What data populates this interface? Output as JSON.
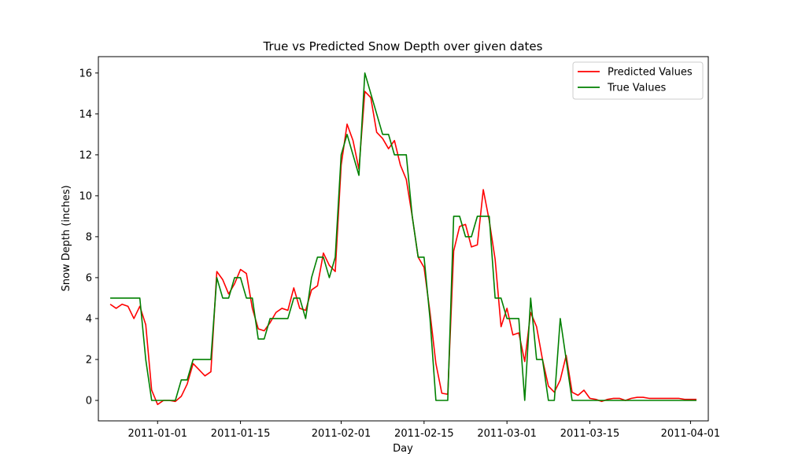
{
  "chart_data": {
    "type": "line",
    "title": "True vs Predicted Snow Depth over given dates",
    "xlabel": "Day",
    "ylabel": "Snow Depth (inches)",
    "x_axis": "date",
    "xlim": [
      "2010-12-22",
      "2011-04-04"
    ],
    "ylim": [
      -1,
      16.8
    ],
    "x_ticks": [
      "2011-01-01",
      "2011-01-15",
      "2011-02-01",
      "2011-02-15",
      "2011-03-01",
      "2011-03-15",
      "2011-04-01"
    ],
    "y_ticks": [
      0,
      2,
      4,
      6,
      8,
      10,
      12,
      14,
      16
    ],
    "legend": {
      "placement": "top-right"
    },
    "grid": false,
    "series": [
      {
        "name": "Predicted Values",
        "color": "#ff0000",
        "points": [
          [
            "2010-12-24",
            4.7
          ],
          [
            "2010-12-25",
            4.5
          ],
          [
            "2010-12-26",
            4.7
          ],
          [
            "2010-12-27",
            4.6
          ],
          [
            "2010-12-28",
            4.0
          ],
          [
            "2010-12-29",
            4.6
          ],
          [
            "2010-12-30",
            3.7
          ],
          [
            "2010-12-31",
            0.5
          ],
          [
            "2011-01-01",
            -0.2
          ],
          [
            "2011-01-02",
            0.0
          ],
          [
            "2011-01-03",
            0.0
          ],
          [
            "2011-01-04",
            -0.05
          ],
          [
            "2011-01-05",
            0.2
          ],
          [
            "2011-01-06",
            0.8
          ],
          [
            "2011-01-07",
            1.8
          ],
          [
            "2011-01-08",
            1.5
          ],
          [
            "2011-01-09",
            1.2
          ],
          [
            "2011-01-10",
            1.4
          ],
          [
            "2011-01-11",
            6.3
          ],
          [
            "2011-01-12",
            5.9
          ],
          [
            "2011-01-13",
            5.2
          ],
          [
            "2011-01-14",
            5.7
          ],
          [
            "2011-01-15",
            6.4
          ],
          [
            "2011-01-16",
            6.2
          ],
          [
            "2011-01-17",
            4.5
          ],
          [
            "2011-01-18",
            3.5
          ],
          [
            "2011-01-19",
            3.4
          ],
          [
            "2011-01-20",
            3.8
          ],
          [
            "2011-01-21",
            4.3
          ],
          [
            "2011-01-22",
            4.5
          ],
          [
            "2011-01-23",
            4.4
          ],
          [
            "2011-01-24",
            5.5
          ],
          [
            "2011-01-25",
            4.5
          ],
          [
            "2011-01-26",
            4.4
          ],
          [
            "2011-01-27",
            5.4
          ],
          [
            "2011-01-28",
            5.6
          ],
          [
            "2011-01-29",
            7.2
          ],
          [
            "2011-01-30",
            6.6
          ],
          [
            "2011-01-31",
            6.3
          ],
          [
            "2011-02-01",
            11.5
          ],
          [
            "2011-02-02",
            13.5
          ],
          [
            "2011-02-03",
            12.7
          ],
          [
            "2011-02-04",
            11.3
          ],
          [
            "2011-02-05",
            15.1
          ],
          [
            "2011-02-06",
            14.8
          ],
          [
            "2011-02-07",
            13.1
          ],
          [
            "2011-02-08",
            12.8
          ],
          [
            "2011-02-09",
            12.3
          ],
          [
            "2011-02-10",
            12.7
          ],
          [
            "2011-02-11",
            11.5
          ],
          [
            "2011-02-12",
            10.8
          ],
          [
            "2011-02-13",
            9.0
          ],
          [
            "2011-02-14",
            7.0
          ],
          [
            "2011-02-15",
            6.5
          ],
          [
            "2011-02-16",
            4.3
          ],
          [
            "2011-02-17",
            1.8
          ],
          [
            "2011-02-18",
            0.35
          ],
          [
            "2011-02-19",
            0.3
          ],
          [
            "2011-02-20",
            7.3
          ],
          [
            "2011-02-21",
            8.5
          ],
          [
            "2011-02-22",
            8.6
          ],
          [
            "2011-02-23",
            7.5
          ],
          [
            "2011-02-24",
            7.6
          ],
          [
            "2011-02-25",
            10.3
          ],
          [
            "2011-02-26",
            8.8
          ],
          [
            "2011-02-27",
            6.9
          ],
          [
            "2011-02-28",
            3.6
          ],
          [
            "2011-03-01",
            4.5
          ],
          [
            "2011-03-02",
            3.2
          ],
          [
            "2011-03-03",
            3.3
          ],
          [
            "2011-03-04",
            1.9
          ],
          [
            "2011-03-05",
            4.3
          ],
          [
            "2011-03-06",
            3.6
          ],
          [
            "2011-03-07",
            2.0
          ],
          [
            "2011-03-08",
            0.7
          ],
          [
            "2011-03-09",
            0.4
          ],
          [
            "2011-03-10",
            1.0
          ],
          [
            "2011-03-11",
            2.2
          ],
          [
            "2011-03-12",
            0.4
          ],
          [
            "2011-03-13",
            0.25
          ],
          [
            "2011-03-14",
            0.5
          ],
          [
            "2011-03-15",
            0.1
          ],
          [
            "2011-03-16",
            0.05
          ],
          [
            "2011-03-17",
            -0.05
          ],
          [
            "2011-03-18",
            0.05
          ],
          [
            "2011-03-19",
            0.1
          ],
          [
            "2011-03-20",
            0.1
          ],
          [
            "2011-03-21",
            0.0
          ],
          [
            "2011-03-22",
            0.1
          ],
          [
            "2011-03-23",
            0.15
          ],
          [
            "2011-03-24",
            0.15
          ],
          [
            "2011-03-25",
            0.1
          ],
          [
            "2011-03-26",
            0.1
          ],
          [
            "2011-03-27",
            0.1
          ],
          [
            "2011-03-28",
            0.1
          ],
          [
            "2011-03-29",
            0.1
          ],
          [
            "2011-03-30",
            0.1
          ],
          [
            "2011-03-31",
            0.05
          ],
          [
            "2011-04-01",
            0.05
          ],
          [
            "2011-04-02",
            0.05
          ]
        ]
      },
      {
        "name": "True Values",
        "color": "#008000",
        "points": [
          [
            "2010-12-24",
            5
          ],
          [
            "2010-12-25",
            5
          ],
          [
            "2010-12-26",
            5
          ],
          [
            "2010-12-27",
            5
          ],
          [
            "2010-12-28",
            5
          ],
          [
            "2010-12-29",
            5
          ],
          [
            "2010-12-30",
            2
          ],
          [
            "2010-12-31",
            0
          ],
          [
            "2011-01-01",
            0
          ],
          [
            "2011-01-02",
            0
          ],
          [
            "2011-01-03",
            0
          ],
          [
            "2011-01-04",
            0
          ],
          [
            "2011-01-05",
            1
          ],
          [
            "2011-01-06",
            1
          ],
          [
            "2011-01-07",
            2
          ],
          [
            "2011-01-08",
            2
          ],
          [
            "2011-01-09",
            2
          ],
          [
            "2011-01-10",
            2
          ],
          [
            "2011-01-11",
            6
          ],
          [
            "2011-01-12",
            5
          ],
          [
            "2011-01-13",
            5
          ],
          [
            "2011-01-14",
            6
          ],
          [
            "2011-01-15",
            6
          ],
          [
            "2011-01-16",
            5
          ],
          [
            "2011-01-17",
            5
          ],
          [
            "2011-01-18",
            3
          ],
          [
            "2011-01-19",
            3
          ],
          [
            "2011-01-20",
            4
          ],
          [
            "2011-01-21",
            4
          ],
          [
            "2011-01-22",
            4
          ],
          [
            "2011-01-23",
            4
          ],
          [
            "2011-01-24",
            5
          ],
          [
            "2011-01-25",
            5
          ],
          [
            "2011-01-26",
            4
          ],
          [
            "2011-01-27",
            6
          ],
          [
            "2011-01-28",
            7
          ],
          [
            "2011-01-29",
            7
          ],
          [
            "2011-01-30",
            6
          ],
          [
            "2011-01-31",
            7
          ],
          [
            "2011-02-01",
            12
          ],
          [
            "2011-02-02",
            13
          ],
          [
            "2011-02-03",
            12
          ],
          [
            "2011-02-04",
            11
          ],
          [
            "2011-02-05",
            16
          ],
          [
            "2011-02-06",
            15
          ],
          [
            "2011-02-07",
            14
          ],
          [
            "2011-02-08",
            13
          ],
          [
            "2011-02-09",
            13
          ],
          [
            "2011-02-10",
            12
          ],
          [
            "2011-02-11",
            12
          ],
          [
            "2011-02-12",
            12
          ],
          [
            "2011-02-13",
            9
          ],
          [
            "2011-02-14",
            7
          ],
          [
            "2011-02-15",
            7
          ],
          [
            "2011-02-16",
            4
          ],
          [
            "2011-02-17",
            0
          ],
          [
            "2011-02-18",
            0
          ],
          [
            "2011-02-19",
            0
          ],
          [
            "2011-02-20",
            9
          ],
          [
            "2011-02-21",
            9
          ],
          [
            "2011-02-22",
            8
          ],
          [
            "2011-02-23",
            8
          ],
          [
            "2011-02-24",
            9
          ],
          [
            "2011-02-25",
            9
          ],
          [
            "2011-02-26",
            9
          ],
          [
            "2011-02-27",
            5
          ],
          [
            "2011-02-28",
            5
          ],
          [
            "2011-03-01",
            4
          ],
          [
            "2011-03-02",
            4
          ],
          [
            "2011-03-03",
            4
          ],
          [
            "2011-03-04",
            0
          ],
          [
            "2011-03-05",
            5
          ],
          [
            "2011-03-06",
            2
          ],
          [
            "2011-03-07",
            2
          ],
          [
            "2011-03-08",
            0
          ],
          [
            "2011-03-09",
            0
          ],
          [
            "2011-03-10",
            4
          ],
          [
            "2011-03-11",
            2
          ],
          [
            "2011-03-12",
            0
          ],
          [
            "2011-03-13",
            0
          ],
          [
            "2011-03-14",
            0
          ],
          [
            "2011-03-15",
            0
          ],
          [
            "2011-03-16",
            0
          ],
          [
            "2011-03-17",
            0
          ],
          [
            "2011-03-18",
            0
          ],
          [
            "2011-03-19",
            0
          ],
          [
            "2011-03-20",
            0
          ],
          [
            "2011-03-21",
            0
          ],
          [
            "2011-03-22",
            0
          ],
          [
            "2011-03-23",
            0
          ],
          [
            "2011-03-24",
            0
          ],
          [
            "2011-03-25",
            0
          ],
          [
            "2011-03-26",
            0
          ],
          [
            "2011-03-27",
            0
          ],
          [
            "2011-03-28",
            0
          ],
          [
            "2011-03-29",
            0
          ],
          [
            "2011-03-30",
            0
          ],
          [
            "2011-03-31",
            0
          ],
          [
            "2011-04-01",
            0
          ],
          [
            "2011-04-02",
            0
          ]
        ]
      }
    ]
  }
}
